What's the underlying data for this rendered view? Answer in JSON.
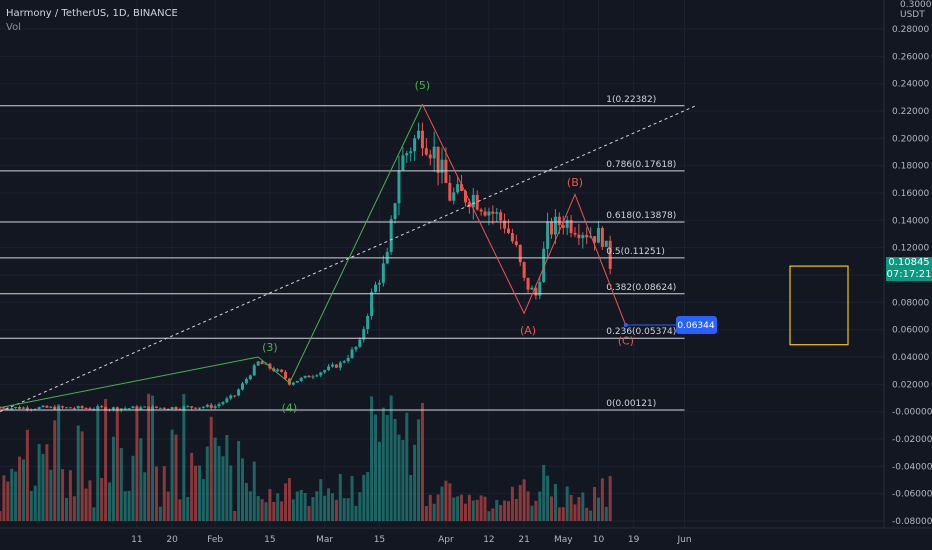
{
  "header": {
    "symbol": "Harmony / TetherUS, 1D, BINANCE",
    "volume_label": "Vol",
    "currency": "USDT",
    "currency_top_tick": "0.30000"
  },
  "last_price": {
    "value": "0.10845",
    "countdown": "07:17:21"
  },
  "colors": {
    "background": "#131722",
    "up": "#26a69a",
    "down": "#ef5350",
    "level_line": "#d1d4dc",
    "wave_green": "#4caf50",
    "wave_red": "#ef5350",
    "box": "#f5c518",
    "tag": "#2962ff",
    "axis_text": "#b2b5be"
  },
  "chart_data": {
    "type": "candlestick",
    "title": "Harmony / TetherUS, 1D, BINANCE",
    "y_axis": {
      "range": [
        -0.085,
        0.305
      ],
      "ticks": [
        "0.28000",
        "0.26000",
        "0.24000",
        "0.22000",
        "0.20000",
        "0.18000",
        "0.16000",
        "0.14000",
        "0.12000",
        "0.10000",
        "0.08000",
        "0.06000",
        "0.04000",
        "0.02000",
        "-0.00000",
        "-0.02000",
        "-0.04000",
        "-0.06000",
        "-0.08000"
      ]
    },
    "x_axis": {
      "range_days": [
        -75,
        151
      ],
      "ticks": [
        {
          "label": "11",
          "day": -40
        },
        {
          "label": "20",
          "day": -31
        },
        {
          "label": "Feb",
          "day": -20
        },
        {
          "label": "15",
          "day": -6
        },
        {
          "label": "Mar",
          "day": 8
        },
        {
          "label": "15",
          "day": 22
        },
        {
          "label": "Apr",
          "day": 39
        },
        {
          "label": "12",
          "day": 50
        },
        {
          "label": "21",
          "day": 59
        },
        {
          "label": "May",
          "day": 69
        },
        {
          "label": "10",
          "day": 78
        },
        {
          "label": "19",
          "day": 87
        },
        {
          "label": "Jun",
          "day": 100
        }
      ]
    },
    "fib_levels": [
      {
        "ratio": "1",
        "price": 0.22382,
        "label": "1(0.22382)"
      },
      {
        "ratio": "0.786",
        "price": 0.17618,
        "label": "0.786(0.17618)"
      },
      {
        "ratio": "0.618",
        "price": 0.13878,
        "label": "0.618(0.13878)"
      },
      {
        "ratio": "0.5",
        "price": 0.11251,
        "label": "0.5(0.11251)"
      },
      {
        "ratio": "0.382",
        "price": 0.08624,
        "label": "0.382(0.08624)"
      },
      {
        "ratio": "0.236",
        "price": 0.05374,
        "label": "0.236(0.05374)"
      },
      {
        "ratio": "0",
        "price": 0.00121,
        "label": "0(0.00121)"
      }
    ],
    "wave_labels": [
      {
        "text": "(3)",
        "day": -6,
        "price": 0.0445,
        "color": "green"
      },
      {
        "text": "(4)",
        "day": -1,
        "price": 0.0,
        "color": "green"
      },
      {
        "text": "(5)",
        "day": 33,
        "price": 0.236,
        "color": "green"
      },
      {
        "text": "(A)",
        "day": 60,
        "price": 0.057,
        "color": "red"
      },
      {
        "text": "(B)",
        "day": 72,
        "price": 0.165,
        "color": "red"
      },
      {
        "text": "(C)",
        "day": 85,
        "price": 0.049,
        "color": "red"
      }
    ],
    "wave_path_green": [
      [
        -75,
        0.003
      ],
      [
        -9,
        0.04
      ],
      [
        -1,
        0.021
      ],
      [
        33,
        0.225
      ]
    ],
    "wave_path_red": [
      [
        33,
        0.225
      ],
      [
        59,
        0.072
      ],
      [
        72,
        0.159
      ],
      [
        85,
        0.063
      ]
    ],
    "trendline_dotted": [
      [
        -75,
        0.0
      ],
      [
        103,
        0.224
      ]
    ],
    "target_tag": {
      "label": "0.06344",
      "price": 0.06344,
      "day": 85
    },
    "target_box": {
      "price_top": 0.1065,
      "price_bottom": 0.049
    },
    "candles": [],
    "volume": []
  }
}
